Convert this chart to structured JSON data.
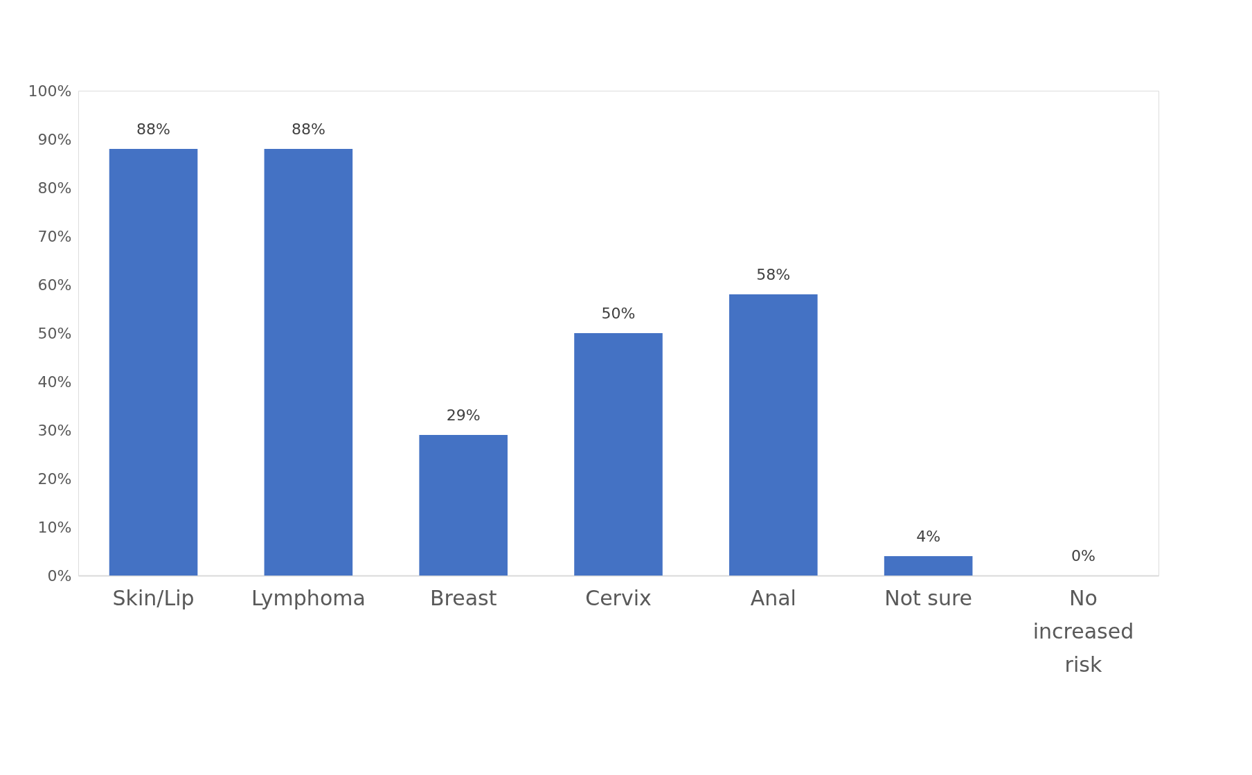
{
  "chart_data": {
    "type": "bar",
    "categories": [
      "Skin/Lip",
      "Lymphoma",
      "Breast",
      "Cervix",
      "Anal",
      "Not sure",
      "No increased risk"
    ],
    "values": [
      88,
      88,
      29,
      50,
      58,
      4,
      0
    ],
    "value_labels": [
      "88%",
      "88%",
      "29%",
      "50%",
      "58%",
      "4%",
      "0%"
    ],
    "color": "#4472c4",
    "ylim": [
      0,
      100
    ],
    "yticks": [
      {
        "value": 0,
        "label": "0%"
      },
      {
        "value": 10,
        "label": "10%"
      },
      {
        "value": 20,
        "label": "20%"
      },
      {
        "value": 30,
        "label": "30%"
      },
      {
        "value": 40,
        "label": "40%"
      },
      {
        "value": 50,
        "label": "50%"
      },
      {
        "value": 60,
        "label": "60%"
      },
      {
        "value": 70,
        "label": "70%"
      },
      {
        "value": 80,
        "label": "80%"
      },
      {
        "value": 90,
        "label": "90%"
      },
      {
        "value": 100,
        "label": "100%"
      }
    ],
    "grid": false
  }
}
